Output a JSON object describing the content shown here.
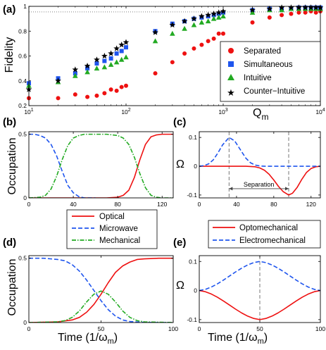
{
  "chart_data": [
    {
      "panel": "(a)",
      "type": "scatter",
      "xscale": "log",
      "xlim": [
        10,
        10000
      ],
      "ylim": [
        0.2,
        1.0
      ],
      "xlabel_main": "Q",
      "xlabel_sub": "m",
      "ylabel": "Fidelity",
      "xticks": [
        10,
        100,
        1000,
        10000
      ],
      "xtick_labels": [
        {
          "base": "10",
          "exp": "1"
        },
        {
          "base": "10",
          "exp": "2"
        },
        {
          "base": "10",
          "exp": "3"
        },
        {
          "base": "10",
          "exp": "4"
        }
      ],
      "yticks": [
        0.2,
        0.4,
        0.6,
        0.8,
        1
      ],
      "ytick_labels": [
        "0.2",
        "0.4",
        "0.6",
        "0.8",
        "1"
      ],
      "reference_line_y": 0.955,
      "legend_position": "bottom-right",
      "series": [
        {
          "name": "Separated",
          "color": "#ee1111",
          "marker": "circle",
          "x": [
            10,
            20,
            30,
            40,
            50,
            60,
            70,
            80,
            90,
            100,
            200,
            300,
            400,
            500,
            600,
            700,
            800,
            900,
            1000,
            2000,
            3000,
            4000,
            5000,
            6000,
            7000,
            8000,
            9000,
            10000
          ],
          "y": [
            0.26,
            0.26,
            0.29,
            0.27,
            0.28,
            0.3,
            0.33,
            0.32,
            0.35,
            0.36,
            0.46,
            0.55,
            0.62,
            0.66,
            0.69,
            0.72,
            0.74,
            0.78,
            0.78,
            0.87,
            0.91,
            0.93,
            0.94,
            0.95,
            0.95,
            0.96,
            0.95,
            0.96
          ]
        },
        {
          "name": "Simultaneous",
          "color": "#1f55ee",
          "marker": "square",
          "x": [
            10,
            20,
            30,
            40,
            50,
            60,
            70,
            80,
            90,
            100,
            200,
            300,
            400,
            500,
            600,
            700,
            800,
            900,
            1000,
            2000,
            3000,
            4000,
            5000,
            6000,
            7000,
            8000,
            9000,
            10000
          ],
          "y": [
            0.38,
            0.42,
            0.46,
            0.5,
            0.54,
            0.56,
            0.58,
            0.62,
            0.64,
            0.67,
            0.8,
            0.86,
            0.88,
            0.9,
            0.91,
            0.92,
            0.93,
            0.94,
            0.95,
            0.97,
            0.98,
            0.98,
            0.98,
            0.99,
            0.99,
            0.99,
            0.99,
            0.99
          ]
        },
        {
          "name": "Intuitive",
          "color": "#22aa22",
          "marker": "triangle",
          "x": [
            10,
            20,
            30,
            40,
            50,
            60,
            70,
            80,
            90,
            100,
            200,
            300,
            400,
            500,
            600,
            700,
            800,
            900,
            1000,
            2000,
            3000,
            4000,
            5000,
            6000,
            7000,
            8000,
            9000,
            10000
          ],
          "y": [
            0.36,
            0.39,
            0.44,
            0.47,
            0.5,
            0.51,
            0.53,
            0.55,
            0.57,
            0.59,
            0.72,
            0.78,
            0.82,
            0.85,
            0.87,
            0.88,
            0.9,
            0.91,
            0.92,
            0.95,
            0.97,
            0.97,
            0.98,
            0.98,
            0.98,
            0.98,
            0.98,
            0.98
          ]
        },
        {
          "name": "Counter-Intuitive",
          "color": "#000000",
          "marker": "star",
          "x": [
            10,
            20,
            30,
            40,
            50,
            60,
            70,
            80,
            90,
            100,
            200,
            300,
            400,
            500,
            600,
            700,
            800,
            900,
            1000,
            2000,
            3000,
            4000,
            5000,
            6000,
            7000,
            8000,
            9000,
            10000
          ],
          "y": [
            0.33,
            0.4,
            0.49,
            0.52,
            0.57,
            0.6,
            0.62,
            0.66,
            0.69,
            0.71,
            0.79,
            0.85,
            0.88,
            0.9,
            0.92,
            0.93,
            0.94,
            0.95,
            0.96,
            0.97,
            0.98,
            0.99,
            0.99,
            0.99,
            0.99,
            0.99,
            0.99,
            0.99
          ]
        }
      ]
    },
    {
      "panel": "(b)",
      "type": "line",
      "xlim": [
        0,
        130
      ],
      "ylim": [
        0,
        0.52
      ],
      "xticks": [
        0,
        40,
        80,
        120
      ],
      "yticks": [
        0,
        0.5
      ],
      "ytick_labels": [
        "0",
        "0.5"
      ],
      "xlabel": "",
      "ylabel": "Occupation",
      "legend_position": "below",
      "series": [
        {
          "name": "Optical",
          "color": "#ee1111",
          "dash": "solid",
          "x": [
            0,
            70,
            80,
            85,
            90,
            95,
            100,
            105,
            110,
            115,
            120,
            130
          ],
          "y": [
            0,
            0,
            0.005,
            0.02,
            0.06,
            0.16,
            0.3,
            0.42,
            0.48,
            0.495,
            0.5,
            0.5
          ]
        },
        {
          "name": "Microwave",
          "color": "#1f55ee",
          "dash": "dashed",
          "x": [
            0,
            5,
            10,
            15,
            20,
            25,
            30,
            35,
            40,
            45,
            50,
            60
          ],
          "y": [
            0.5,
            0.5,
            0.49,
            0.47,
            0.42,
            0.33,
            0.21,
            0.1,
            0.04,
            0.01,
            0,
            0
          ]
        },
        {
          "name": "Mechanical",
          "color": "#22aa22",
          "dash": "dashdot",
          "x": [
            0,
            10,
            15,
            20,
            25,
            30,
            35,
            40,
            45,
            50,
            60,
            70,
            80,
            85,
            90,
            95,
            100,
            105,
            110,
            115,
            120,
            130
          ],
          "y": [
            0,
            0.005,
            0.02,
            0.07,
            0.17,
            0.3,
            0.41,
            0.47,
            0.49,
            0.5,
            0.5,
            0.5,
            0.49,
            0.47,
            0.42,
            0.32,
            0.19,
            0.08,
            0.02,
            0.005,
            0,
            0
          ]
        }
      ]
    },
    {
      "panel": "(c)",
      "type": "line",
      "xlim": [
        0,
        130
      ],
      "ylim": [
        -0.11,
        0.12
      ],
      "xticks": [
        0,
        40,
        80,
        120
      ],
      "yticks": [
        -0.1,
        0,
        0.1
      ],
      "ytick_labels": [
        "-0.1",
        "0",
        "0.1"
      ],
      "xlabel": "",
      "ylabel": "Ω",
      "vlines": [
        32,
        96
      ],
      "annotation": {
        "text": "Separation",
        "x_from": 32,
        "x_to": 96
      },
      "series": [
        {
          "name": "Optomechanical",
          "color": "#ee1111",
          "dash": "solid",
          "x": [
            0,
            50,
            60,
            65,
            70,
            75,
            80,
            85,
            90,
            96,
            100,
            105,
            110,
            115,
            120,
            125,
            130
          ],
          "y": [
            0,
            0,
            -0.002,
            -0.006,
            -0.014,
            -0.028,
            -0.048,
            -0.07,
            -0.088,
            -0.1,
            -0.094,
            -0.074,
            -0.046,
            -0.022,
            -0.008,
            -0.002,
            0
          ]
        },
        {
          "name": "Electromechanical",
          "color": "#1f55ee",
          "dash": "dashed",
          "x": [
            0,
            5,
            10,
            15,
            20,
            25,
            32,
            38,
            44,
            50,
            55,
            60,
            65,
            70,
            80,
            130
          ],
          "y": [
            0,
            0.002,
            0.008,
            0.022,
            0.046,
            0.074,
            0.1,
            0.088,
            0.058,
            0.028,
            0.012,
            0.004,
            0.001,
            0,
            0,
            0
          ]
        }
      ]
    },
    {
      "panel": "(d)",
      "type": "line",
      "xlim": [
        0,
        100
      ],
      "ylim": [
        0,
        0.52
      ],
      "xticks": [
        0,
        50,
        100
      ],
      "yticks": [
        0,
        0.5
      ],
      "ytick_labels": [
        "0",
        "0.5"
      ],
      "xlabel_main": "Time (1/ω",
      "xlabel_sub": "m",
      "xlabel_close": ")",
      "ylabel": "Occupation",
      "series": [
        {
          "name": "Optical",
          "color": "#ee1111",
          "dash": "solid",
          "x": [
            0,
            20,
            30,
            35,
            40,
            45,
            50,
            55,
            60,
            65,
            70,
            75,
            80,
            90,
            100
          ],
          "y": [
            0,
            0.005,
            0.02,
            0.04,
            0.08,
            0.14,
            0.22,
            0.31,
            0.39,
            0.44,
            0.47,
            0.49,
            0.495,
            0.5,
            0.5
          ]
        },
        {
          "name": "Microwave",
          "color": "#1f55ee",
          "dash": "dashed",
          "x": [
            0,
            10,
            20,
            25,
            30,
            35,
            40,
            45,
            50,
            55,
            60,
            65,
            70,
            80,
            100
          ],
          "y": [
            0.5,
            0.5,
            0.49,
            0.48,
            0.45,
            0.4,
            0.33,
            0.25,
            0.17,
            0.1,
            0.05,
            0.02,
            0.008,
            0.001,
            0
          ]
        },
        {
          "name": "Mechanical",
          "color": "#22aa22",
          "dash": "dashdot",
          "x": [
            0,
            20,
            25,
            30,
            35,
            40,
            45,
            50,
            55,
            60,
            65,
            70,
            75,
            80,
            100
          ],
          "y": [
            0,
            0.005,
            0.015,
            0.04,
            0.09,
            0.16,
            0.22,
            0.245,
            0.22,
            0.16,
            0.09,
            0.04,
            0.015,
            0.005,
            0
          ]
        }
      ]
    },
    {
      "panel": "(e)",
      "type": "line",
      "xlim": [
        0,
        100
      ],
      "ylim": [
        -0.11,
        0.12
      ],
      "xticks": [
        0,
        50,
        100
      ],
      "yticks": [
        -0.1,
        0,
        0.1
      ],
      "ytick_labels": [
        "-0.1",
        "0",
        "0.1"
      ],
      "xlabel_main": "Time (1/ω",
      "xlabel_sub": "m",
      "xlabel_close": ")",
      "ylabel": "Ω",
      "vlines": [
        50
      ],
      "series": [
        {
          "name": "Optomechanical",
          "color": "#ee1111",
          "dash": "solid",
          "x": [
            0,
            5,
            10,
            15,
            20,
            25,
            30,
            35,
            40,
            45,
            50,
            55,
            60,
            65,
            70,
            75,
            80,
            85,
            90,
            95,
            100
          ],
          "y": [
            0,
            -0.004,
            -0.012,
            -0.023,
            -0.036,
            -0.05,
            -0.064,
            -0.077,
            -0.088,
            -0.096,
            -0.1,
            -0.096,
            -0.088,
            -0.077,
            -0.064,
            -0.05,
            -0.036,
            -0.023,
            -0.012,
            -0.004,
            0
          ]
        },
        {
          "name": "Electromechanical",
          "color": "#1f55ee",
          "dash": "dashed",
          "x": [
            0,
            5,
            10,
            15,
            20,
            25,
            30,
            35,
            40,
            45,
            50,
            55,
            60,
            65,
            70,
            75,
            80,
            85,
            90,
            95,
            100
          ],
          "y": [
            0,
            0.004,
            0.012,
            0.023,
            0.036,
            0.05,
            0.064,
            0.077,
            0.088,
            0.096,
            0.1,
            0.096,
            0.088,
            0.077,
            0.064,
            0.05,
            0.036,
            0.023,
            0.012,
            0.004,
            0
          ]
        }
      ]
    }
  ],
  "legends": {
    "a": [
      "Separated",
      "Simultaneous",
      "Intuitive",
      "Counter−Intuitive"
    ],
    "occupation": [
      "Optical",
      "Microwave",
      "Mechanical"
    ],
    "coupling": [
      "Optomechanical",
      "Electromechanical"
    ]
  },
  "panel_labels": [
    "(a)",
    "(b)",
    "(c)",
    "(d)",
    "(e)"
  ]
}
